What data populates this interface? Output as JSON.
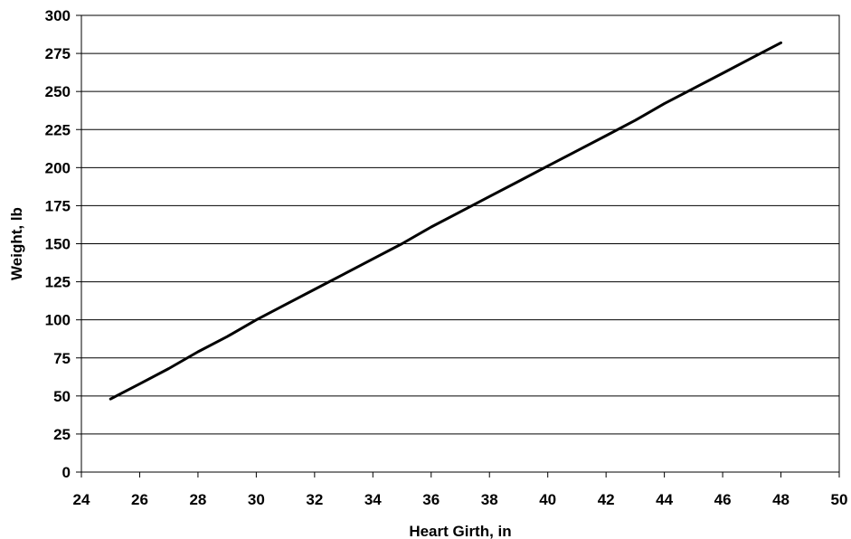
{
  "chart_data": {
    "type": "line",
    "title": "",
    "xlabel": "Heart Girth, in",
    "ylabel": "Weight, lb",
    "xlim": [
      24,
      50
    ],
    "ylim": [
      0,
      300
    ],
    "x_ticks": [
      24,
      26,
      28,
      30,
      32,
      34,
      36,
      38,
      40,
      42,
      44,
      46,
      48,
      50
    ],
    "y_ticks": [
      0,
      25,
      50,
      75,
      100,
      125,
      150,
      175,
      200,
      225,
      250,
      275,
      300
    ],
    "x_tick_labels": [
      "24",
      "26",
      "28",
      "30",
      "32",
      "34",
      "36",
      "38",
      "40",
      "42",
      "44",
      "46",
      "48",
      "50"
    ],
    "y_tick_labels": [
      "0",
      "25",
      "50",
      "75",
      "100",
      "125",
      "150",
      "175",
      "200",
      "225",
      "250",
      "275",
      "300"
    ],
    "grid": {
      "horizontal": true,
      "vertical": false
    },
    "legend": "none",
    "series": [
      {
        "color": "#000000",
        "x": [
          25,
          26,
          27,
          28,
          29,
          30,
          31,
          32,
          33,
          34,
          35,
          36,
          37,
          38,
          39,
          40,
          41,
          42,
          43,
          44,
          45,
          46,
          47,
          48
        ],
        "y": [
          48,
          58,
          68,
          79,
          89,
          100,
          110,
          120,
          130,
          140,
          150,
          161,
          171,
          181,
          191,
          201,
          211,
          221,
          231,
          242,
          252,
          262,
          272,
          282
        ]
      }
    ]
  }
}
